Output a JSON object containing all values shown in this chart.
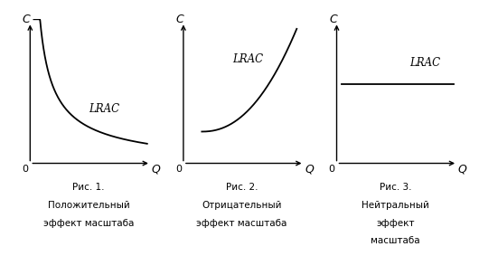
{
  "fig1_label": "LRAC",
  "fig2_label": "LRAC",
  "fig3_label": "LRAC",
  "caption1_line1": "Рис. 1.",
  "caption1_line2": "Положительный",
  "caption1_line3": "эффект масштаба",
  "caption2_line1": "Рис. 2.",
  "caption2_line2": "Отрицательный",
  "caption2_line3": "эффект масштаба",
  "caption3_line1": "Рис. 3.",
  "caption3_line2": "Нейтральный",
  "caption3_line3": "эффект",
  "caption3_line4": "масштаба",
  "axis_label_c": "C",
  "axis_label_q": "Q",
  "axis_label_0": "0",
  "curve_color": "#000000",
  "axis_color": "#000000",
  "background_color": "#ffffff",
  "fig_width": 5.3,
  "fig_height": 3.04,
  "dpi": 100
}
